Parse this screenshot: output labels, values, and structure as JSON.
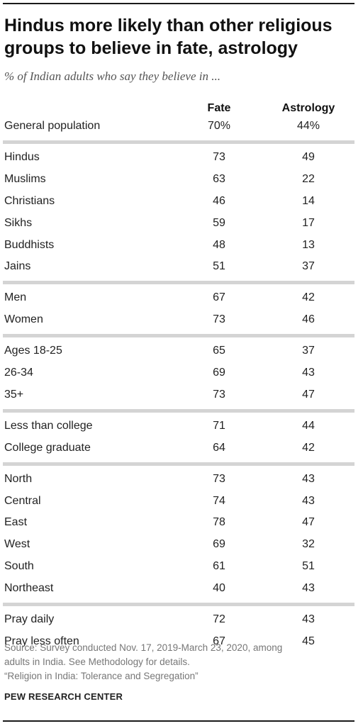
{
  "title_lines": [
    "Hindus more likely than other religious",
    "groups to believe in fate, astrology"
  ],
  "subtitle": "% of Indian adults who say they believe in ...",
  "columns": {
    "fate": "Fate",
    "astrology": "Astrology"
  },
  "chart_data": {
    "type": "table",
    "title": "Hindus more likely than other religious groups to believe in fate, astrology",
    "subtitle": "% of Indian adults who say they believe in ...",
    "columns": [
      "Fate",
      "Astrology"
    ],
    "groups": [
      {
        "rows": [
          {
            "label": "General population",
            "fate": "70%",
            "astrology": "44%"
          }
        ]
      },
      {
        "rows": [
          {
            "label": "Hindus",
            "fate": "73",
            "astrology": "49"
          },
          {
            "label": "Muslims",
            "fate": "63",
            "astrology": "22"
          },
          {
            "label": "Christians",
            "fate": "46",
            "astrology": "14"
          },
          {
            "label": "Sikhs",
            "fate": "59",
            "astrology": "17"
          },
          {
            "label": "Buddhists",
            "fate": "48",
            "astrology": "13"
          },
          {
            "label": "Jains",
            "fate": "51",
            "astrology": "37"
          }
        ]
      },
      {
        "rows": [
          {
            "label": "Men",
            "fate": "67",
            "astrology": "42"
          },
          {
            "label": "Women",
            "fate": "73",
            "astrology": "46"
          }
        ]
      },
      {
        "rows": [
          {
            "label": "Ages 18-25",
            "fate": "65",
            "astrology": "37"
          },
          {
            "label": "26-34",
            "fate": "69",
            "astrology": "43"
          },
          {
            "label": "35+",
            "fate": "73",
            "astrology": "47"
          }
        ]
      },
      {
        "rows": [
          {
            "label": "Less than college",
            "fate": "71",
            "astrology": "44"
          },
          {
            "label": "College graduate",
            "fate": "64",
            "astrology": "42"
          }
        ]
      },
      {
        "rows": [
          {
            "label": "North",
            "fate": "73",
            "astrology": "43"
          },
          {
            "label": "Central",
            "fate": "74",
            "astrology": "43"
          },
          {
            "label": "East",
            "fate": "78",
            "astrology": "47"
          },
          {
            "label": "West",
            "fate": "69",
            "astrology": "32"
          },
          {
            "label": "South",
            "fate": "61",
            "astrology": "51"
          },
          {
            "label": "Northeast",
            "fate": "40",
            "astrology": "43"
          }
        ]
      },
      {
        "rows": [
          {
            "label": "Pray daily",
            "fate": "72",
            "astrology": "43"
          },
          {
            "label": "Pray less often",
            "fate": "67",
            "astrology": "45"
          }
        ]
      }
    ]
  },
  "source_lines": [
    "Source: Survey conducted Nov. 17, 2019-March 23, 2020, among",
    "adults in India. See Methodology for details.",
    "“Religion in India: Tolerance and Segregation”"
  ],
  "brand": "PEW RESEARCH CENTER",
  "colors": {
    "text": "#222222",
    "muted": "#777777",
    "separator": "#d4d4d4",
    "rule": "#1a1a1a"
  }
}
